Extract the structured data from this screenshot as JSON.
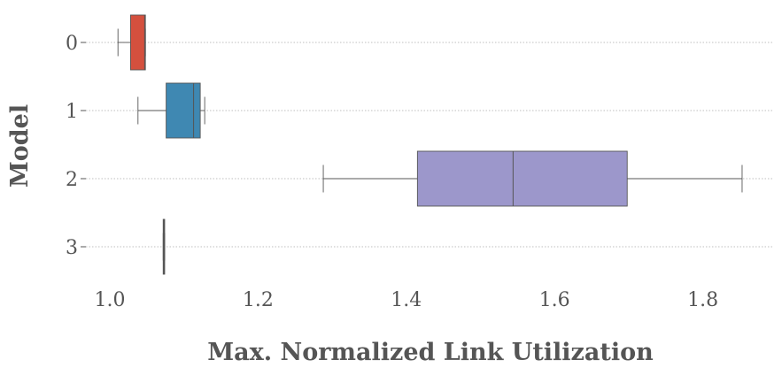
{
  "chart_data": {
    "type": "boxplot",
    "orientation": "horizontal",
    "xlabel": "Max. Normalized Link Utilization",
    "ylabel": "Model",
    "xlim": [
      0.97,
      1.9
    ],
    "xticks": [
      1.0,
      1.2,
      1.4,
      1.6,
      1.8
    ],
    "xtick_labels": [
      "1.0",
      "1.2",
      "1.4",
      "1.6",
      "1.8"
    ],
    "grid": "horizontal dotted",
    "categories": [
      "0",
      "1",
      "2",
      "3"
    ],
    "boxes": [
      {
        "label": "0",
        "whisker_low": 1.011,
        "q1": 1.028,
        "median": 1.047,
        "q3": 1.048,
        "whisker_high": 1.048,
        "color": "#d4503e"
      },
      {
        "label": "1",
        "whisker_low": 1.038,
        "q1": 1.076,
        "median": 1.113,
        "q3": 1.122,
        "whisker_high": 1.128,
        "color": "#3f88b2"
      },
      {
        "label": "2",
        "whisker_low": 1.288,
        "q1": 1.415,
        "median": 1.544,
        "q3": 1.698,
        "whisker_high": 1.853,
        "color": "#9c97cb"
      },
      {
        "label": "3",
        "whisker_low": 1.072,
        "q1": 1.072,
        "median": 1.073,
        "q3": 1.074,
        "whisker_high": 1.074,
        "color": "#777777"
      }
    ]
  }
}
